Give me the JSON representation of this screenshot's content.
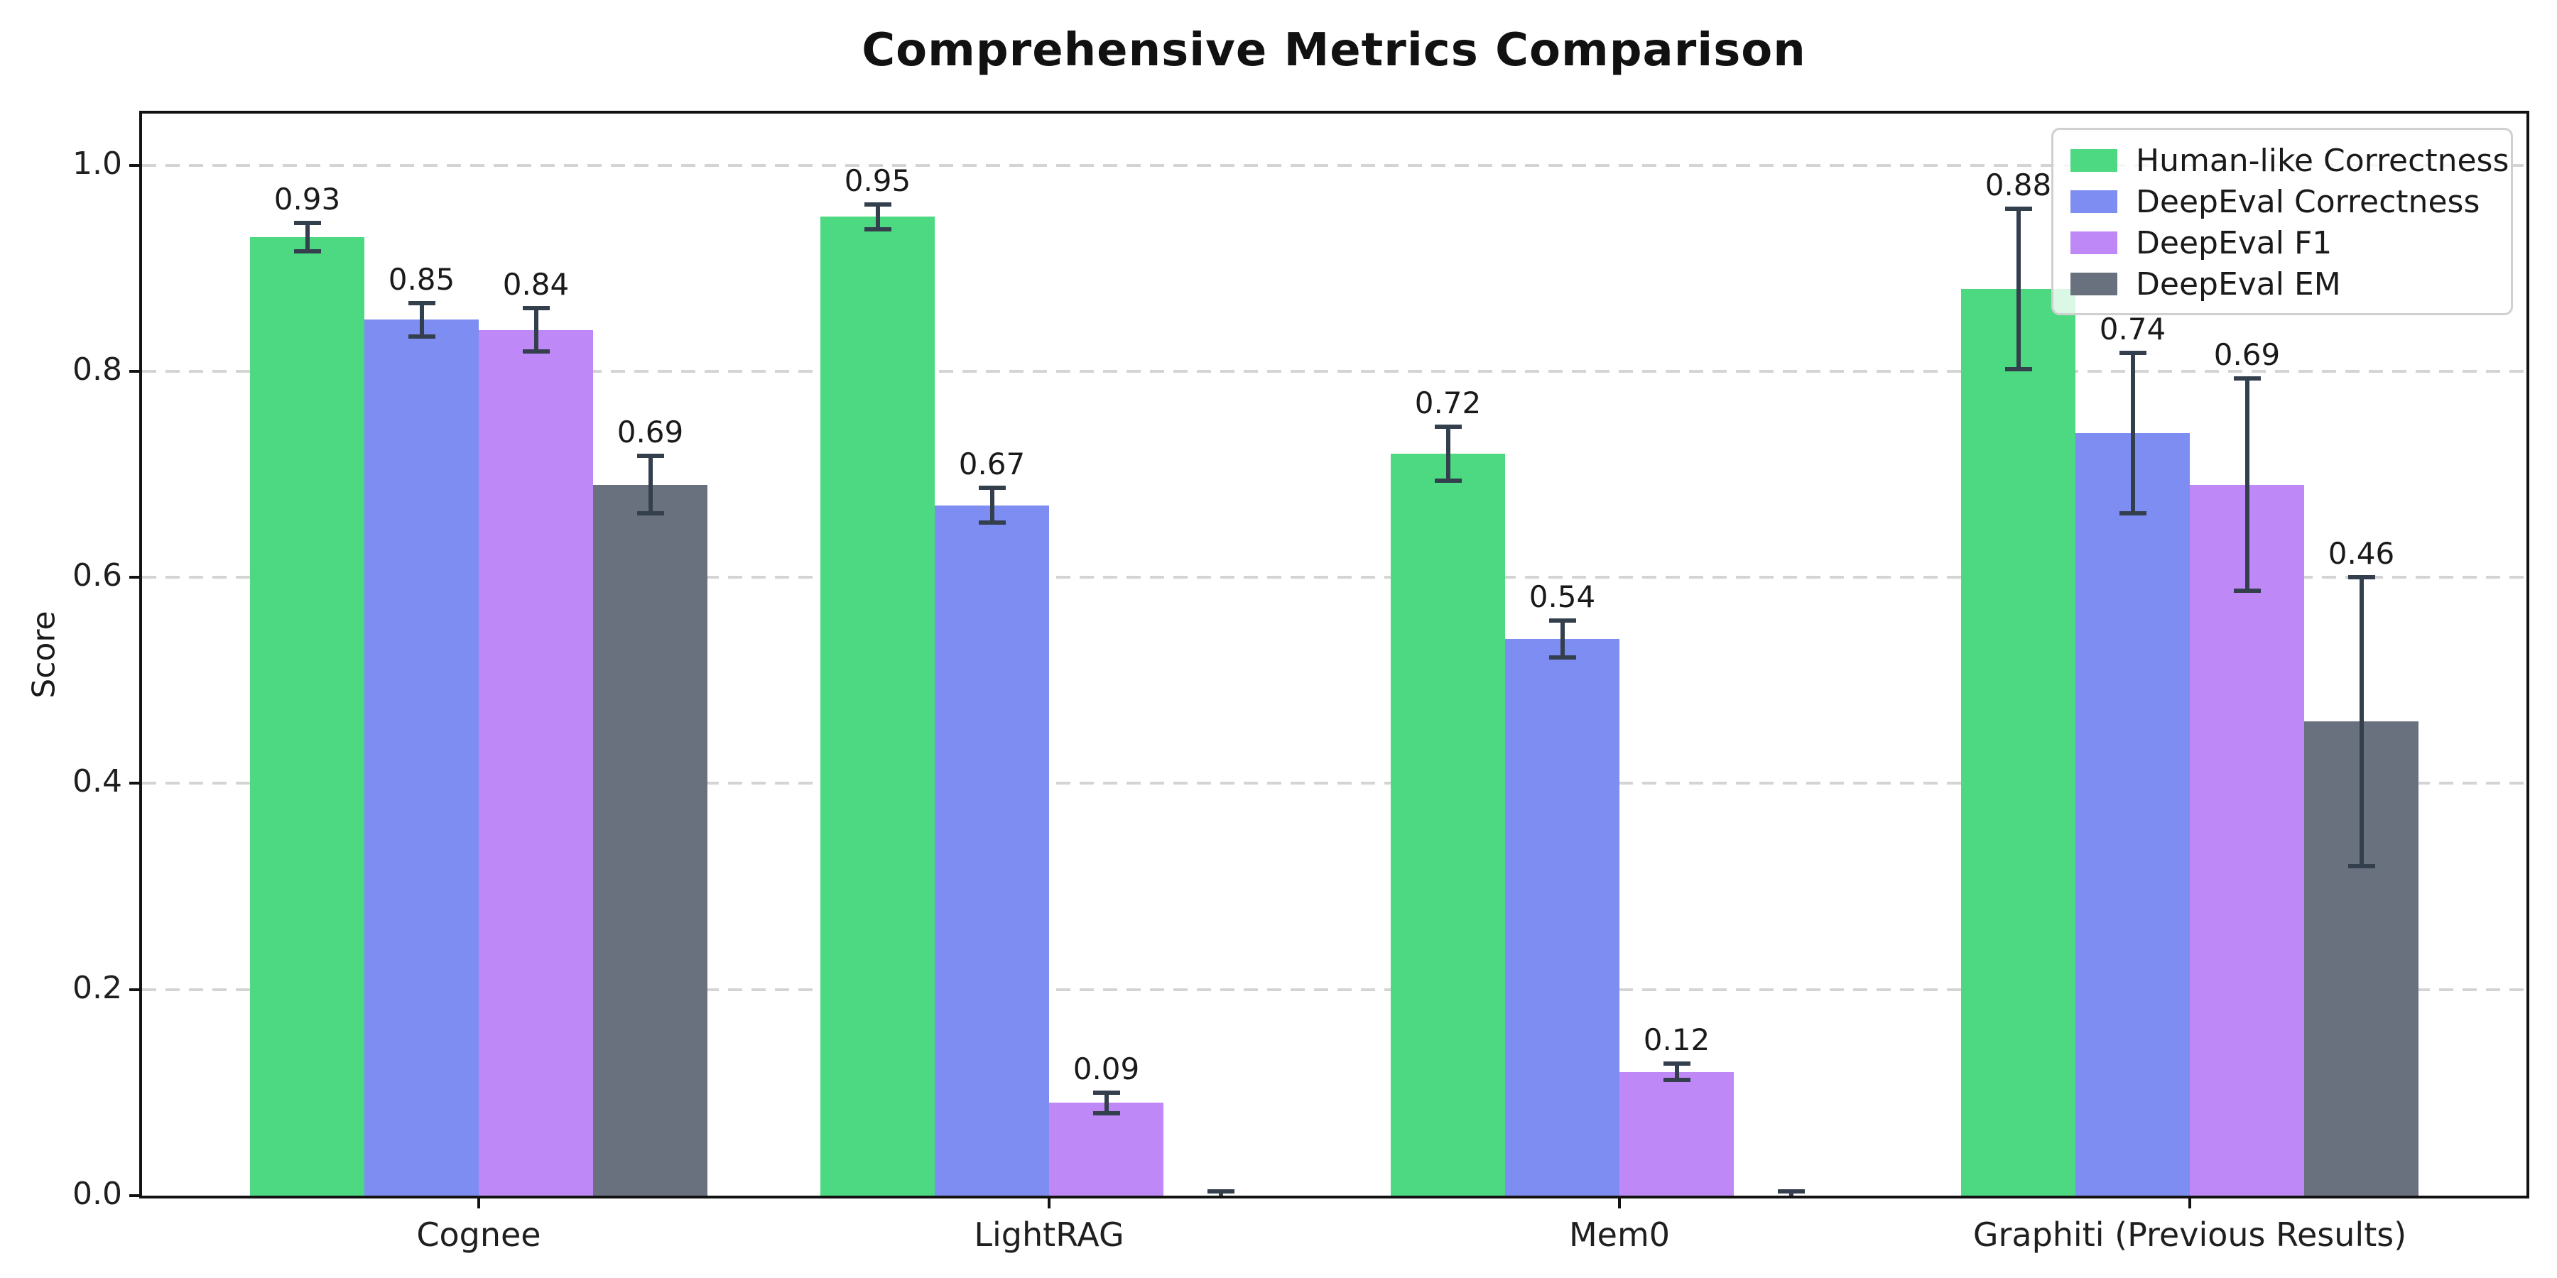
{
  "chart_data": {
    "type": "bar",
    "title": "Comprehensive Metrics Comparison",
    "ylabel": "Score",
    "xlabel": "",
    "categories": [
      "Cognee",
      "LightRAG",
      "Mem0",
      "Graphiti (Previous Results)"
    ],
    "series": [
      {
        "name": "Human-like Correctness",
        "color": "#4DD981",
        "values": [
          0.93,
          0.95,
          0.72,
          0.88
        ],
        "errors": [
          0.014,
          0.012,
          0.026,
          0.078
        ],
        "labels": [
          "0.93",
          "0.95",
          "0.72",
          "0.88"
        ]
      },
      {
        "name": "DeepEval Correctness",
        "color": "#7D8DF1",
        "values": [
          0.85,
          0.67,
          0.54,
          0.74
        ],
        "errors": [
          0.016,
          0.017,
          0.018,
          0.078
        ],
        "labels": [
          "0.85",
          "0.67",
          "0.54",
          "0.74"
        ]
      },
      {
        "name": "DeepEval F1",
        "color": "#BE88F6",
        "values": [
          0.84,
          0.09,
          0.12,
          0.69
        ],
        "errors": [
          0.021,
          0.01,
          0.008,
          0.103
        ],
        "labels": [
          "0.84",
          "0.09",
          "0.12",
          "0.69"
        ]
      },
      {
        "name": "DeepEval EM",
        "color": "#6A717E",
        "values": [
          0.69,
          0.0,
          0.0,
          0.46
        ],
        "errors": [
          0.028,
          0.004,
          0.004,
          0.14
        ],
        "labels": [
          "0.69",
          "",
          "",
          "0.46"
        ]
      }
    ],
    "ylim": [
      0,
      1.05
    ],
    "yticks": [
      0,
      0.2,
      0.4,
      0.6,
      0.8,
      1.0
    ],
    "ytick_labels": [
      "0.0",
      "0.2",
      "0.4",
      "0.6",
      "0.8",
      "1.0"
    ],
    "grid": "horizontal-dashed",
    "legend": {
      "position": "upper-right",
      "entries": [
        "Human-like Correctness",
        "DeepEval Correctness",
        "DeepEval F1",
        "DeepEval EM"
      ]
    },
    "error_bar_color": "#343F4D",
    "grid_color": "#d4d4d4",
    "text_color": "#1a1a1a"
  }
}
